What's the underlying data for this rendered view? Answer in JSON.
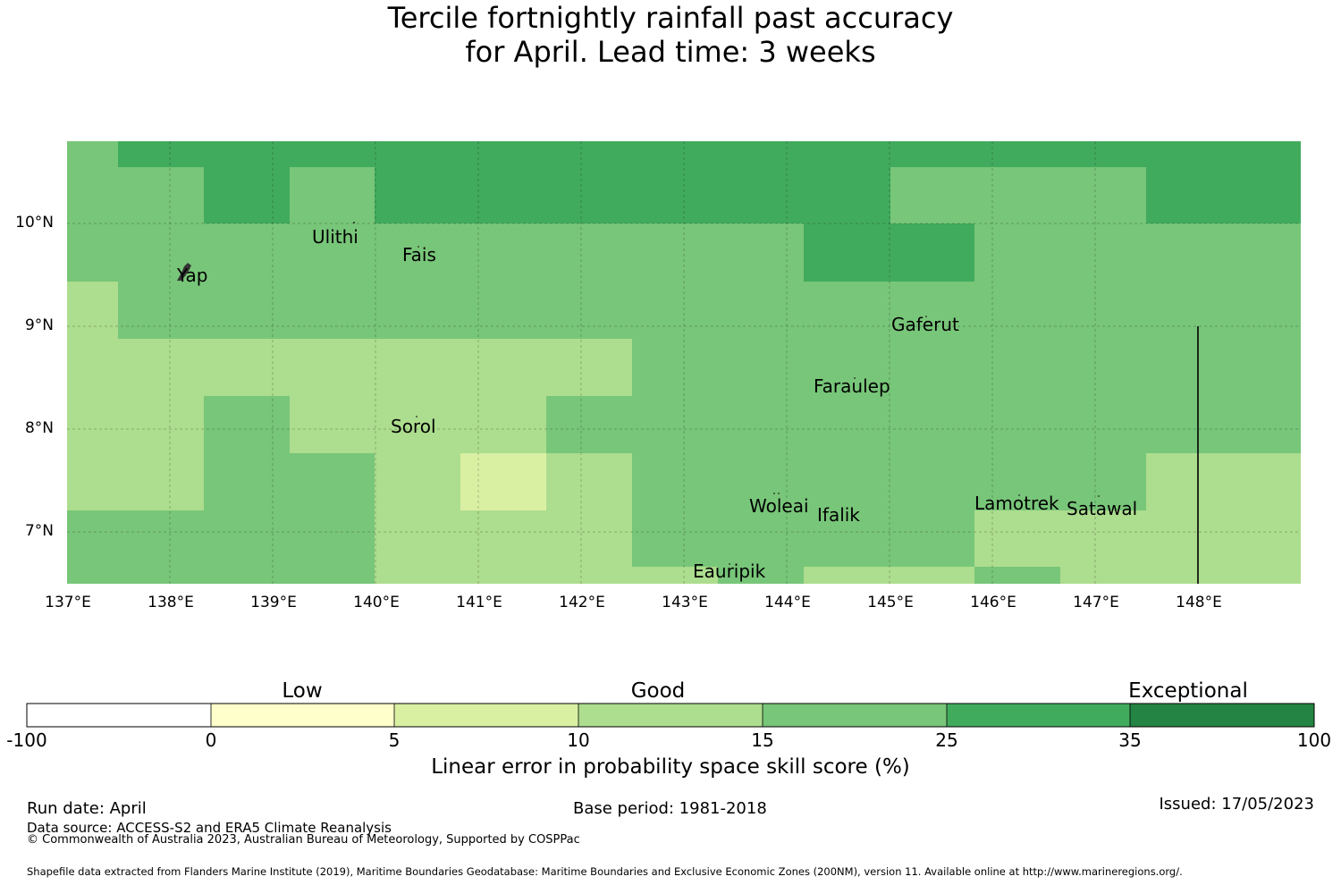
{
  "title": {
    "line1": "Tercile fortnightly rainfall past accuracy",
    "line2": "for April. Lead time: 3 weeks"
  },
  "map": {
    "lat_labels": [
      "10°N",
      "9°N",
      "8°N",
      "7°N"
    ],
    "lon_labels": [
      "137°E",
      "138°E",
      "139°E",
      "140°E",
      "141°E",
      "142°E",
      "143°E",
      "144°E",
      "145°E",
      "146°E",
      "147°E",
      "148°E"
    ],
    "islands": {
      "ulithi": "Ulithi",
      "fais": "Fais",
      "yap": "Yap",
      "gaferut": "Gaferut",
      "faraulep": "Faraulep",
      "sorol": "Sorol",
      "woleai": "Woleai",
      "ifalik": "Ifalik",
      "lamotrek": "Lamotrek",
      "satawal": "Satawal",
      "eauripik": "Eauripik"
    },
    "boundary_line_longitude": 148
  },
  "colorbar": {
    "categories": [
      "Low",
      "Good",
      "Exceptional"
    ],
    "ticks": [
      "-100",
      "0",
      "5",
      "10",
      "15",
      "25",
      "35",
      "100"
    ],
    "colors": [
      "#ffffff",
      "#ffffcc",
      "#d9f0a3",
      "#addd8e",
      "#78c679",
      "#41ab5d",
      "#238443"
    ],
    "title": "Linear error in probability space skill score (%)"
  },
  "footer": {
    "run_date": "Run date: April",
    "base_period": "Base period: 1981-2018",
    "issued": "Issued: 17/05/2023",
    "data_source": "Data source: ACCESS-S2 and ERA5 Climate Reanalysis",
    "copyright": "© Commonwealth of Australia 2023, Australian Bureau of Meteorology, Supported by COSPPac",
    "shapefile": "Shapefile data extracted from Flanders Marine Institute (2019), Maritime Boundaries Geodatabase: Maritime Boundaries and Exclusive Economic Zones (200NM), version 11. Available online at http://www.marineregions.org/."
  }
}
